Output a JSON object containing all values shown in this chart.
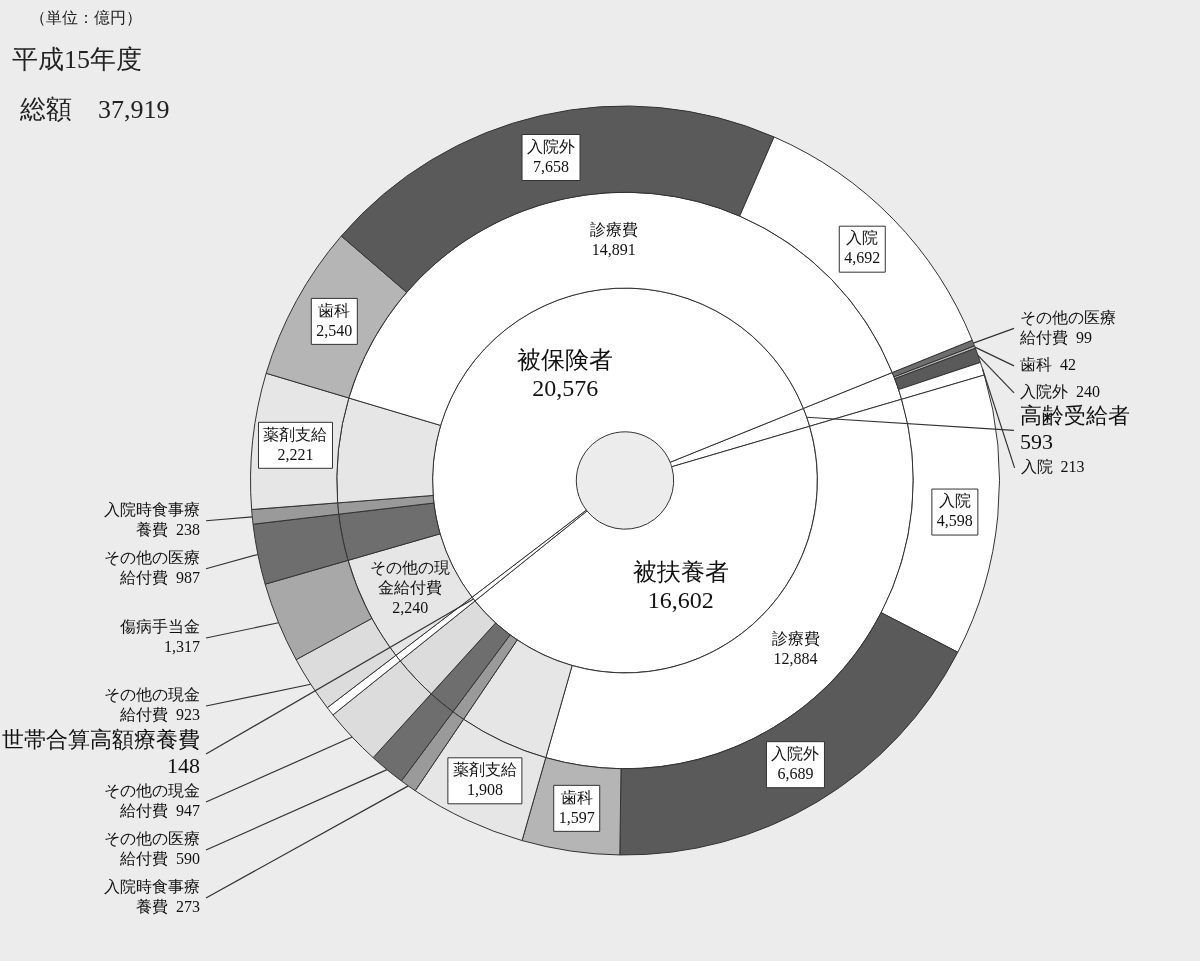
{
  "chart_data": {
    "type": "donut",
    "title": "平成15年度",
    "subtitle": "総額　37,919",
    "annotations": [
      "（単位：億円）"
    ],
    "legend": false,
    "series": [
      {
        "values": [
          593,
          16602,
          148,
          20576
        ],
        "value_labels": [
          "高齢受給者 593",
          "被扶養者 16,602",
          "世帯合算高額療養費 148",
          "被保険者 20,576"
        ],
        "colors": [
          "#ffffff",
          "#ffffff",
          "#ffffff",
          "#ffffff"
        ]
      },
      {
        "values": [
          593,
          12884,
          1908,
          273,
          590,
          947,
          148,
          2240,
          987,
          238,
          2221,
          14891
        ],
        "value_labels": [
          null,
          "診療費 12,884",
          null,
          null,
          null,
          null,
          null,
          "その他の現金給付費 2,240",
          null,
          null,
          null,
          "診療費 14,891"
        ],
        "colors": [
          "#ffffff",
          "#ffffff",
          "#e6e6e6",
          "#9a9a9a",
          "#6e6e6e",
          "#dcdcdc",
          "#ffffff",
          "#e6e6e6",
          "#6e6e6e",
          "#9a9a9a",
          "#e6e6e6",
          "#ffffff"
        ]
      },
      {
        "values": [
          99,
          42,
          240,
          213,
          4598,
          6689,
          1597,
          1908,
          273,
          590,
          947,
          148,
          923,
          1317,
          987,
          238,
          2221,
          2540,
          7658,
          4692
        ],
        "value_labels": [
          "その他の医療給付費 99",
          "歯科 42",
          "入院外 240",
          "入院 213",
          "入院 4,598",
          "入院外 6,689",
          "歯科 1,597",
          "薬剤支給 1,908",
          "入院時食事療養費 273",
          "その他の医療給付費 590",
          "その他の現金給付費 947",
          null,
          "その他の現金給付費 923",
          "傷病手当金 1,317",
          "その他の医療給付費 987",
          "入院時食事療養費 238",
          "薬剤支給 2,221",
          "歯科 2,540",
          "入院外 7,658",
          "入院 4,692"
        ],
        "colors": [
          "#6e6e6e",
          "#b5b5b5",
          "#5a5a5a",
          "#ffffff",
          "#ffffff",
          "#5a5a5a",
          "#b5b5b5",
          "#e6e6e6",
          "#9a9a9a",
          "#6e6e6e",
          "#dcdcdc",
          "#ffffff",
          "#dcdcdc",
          "#a8a8a8",
          "#6e6e6e",
          "#9a9a9a",
          "#e6e6e6",
          "#b5b5b5",
          "#5a5a5a",
          "#ffffff"
        ]
      }
    ]
  }
}
